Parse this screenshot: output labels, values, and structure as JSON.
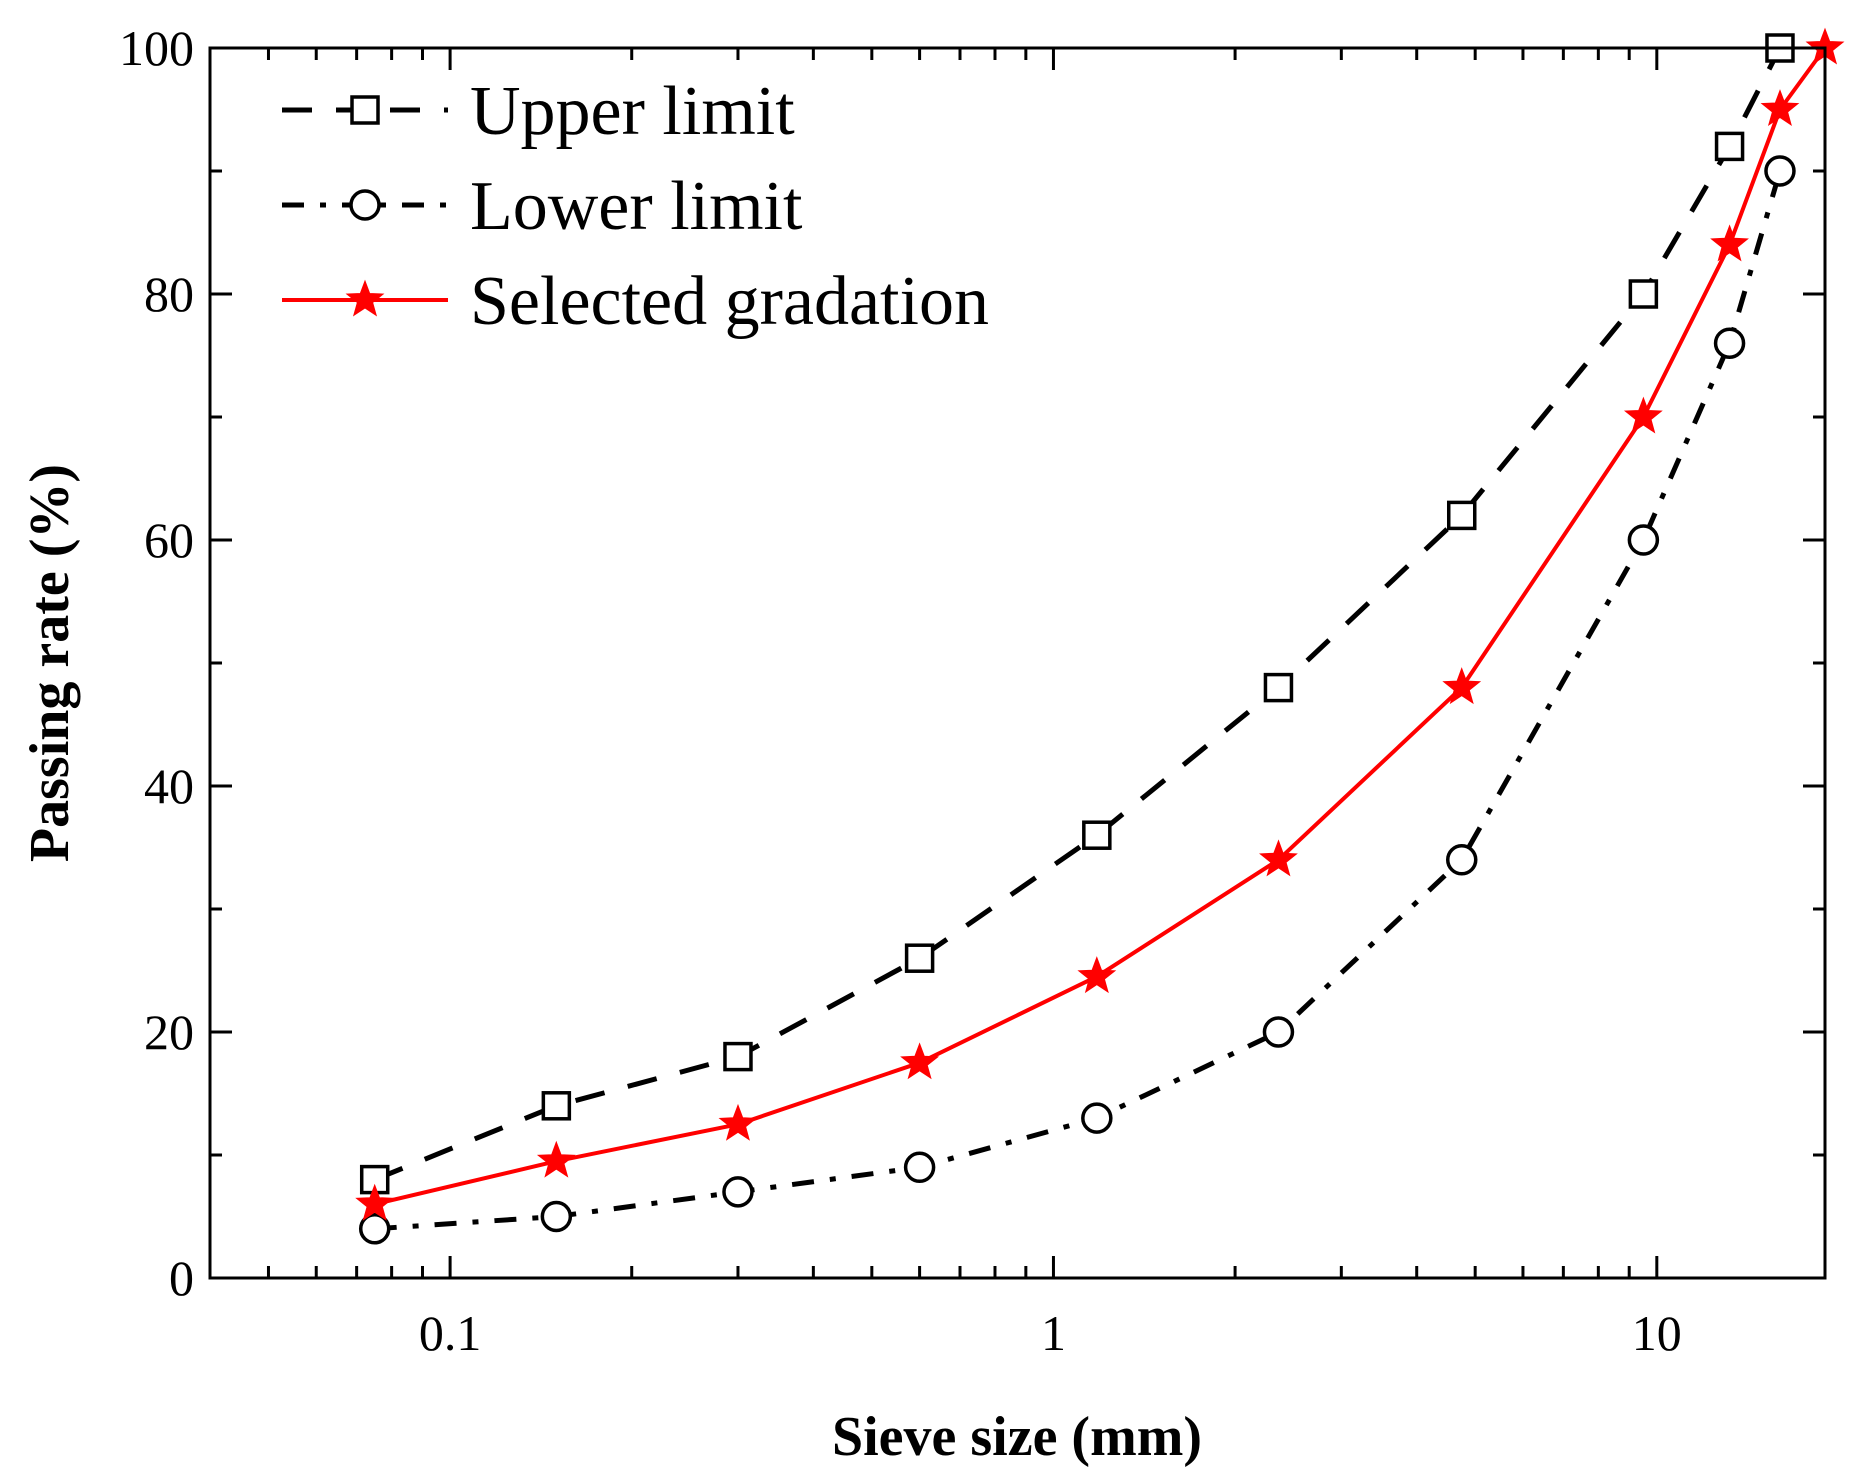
{
  "chart_data": {
    "type": "line",
    "xscale": "log",
    "xlabel": "Sieve size (mm)",
    "ylabel": "Passing rate (%)",
    "xlim": [
      0.04,
      19
    ],
    "ylim": [
      0,
      100
    ],
    "xticks": [
      {
        "value": 0.1,
        "label": "0.1"
      },
      {
        "value": 1,
        "label": "1"
      },
      {
        "value": 10,
        "label": "10"
      }
    ],
    "yticks": [
      {
        "value": 0,
        "label": "0"
      },
      {
        "value": 20,
        "label": "20"
      },
      {
        "value": 40,
        "label": "40"
      },
      {
        "value": 60,
        "label": "60"
      },
      {
        "value": 80,
        "label": "80"
      },
      {
        "value": 100,
        "label": "100"
      }
    ],
    "legend_position": "top-left",
    "series": [
      {
        "name": "Upper limit",
        "color": "#000000",
        "line": "dash",
        "marker": "square",
        "x": [
          0.075,
          0.15,
          0.3,
          0.6,
          1.18,
          2.36,
          4.75,
          9.5,
          13.2,
          16
        ],
        "y": [
          8,
          14,
          18,
          26,
          36,
          48,
          62,
          80,
          92,
          100
        ]
      },
      {
        "name": "Lower limit",
        "color": "#000000",
        "line": "dash-dot",
        "marker": "circle",
        "x": [
          0.075,
          0.15,
          0.3,
          0.6,
          1.18,
          2.36,
          4.75,
          9.5,
          13.2,
          16
        ],
        "y": [
          4,
          5,
          7,
          9,
          13,
          20,
          34,
          60,
          76,
          90
        ]
      },
      {
        "name": "Selected gradation",
        "color": "#ff0000",
        "line": "solid",
        "marker": "star",
        "x": [
          0.075,
          0.15,
          0.3,
          0.6,
          1.18,
          2.36,
          4.75,
          9.5,
          13.2,
          16,
          19
        ],
        "y": [
          6,
          9.5,
          12.5,
          17.5,
          24.5,
          34,
          48,
          70,
          84,
          95,
          100
        ]
      }
    ]
  }
}
